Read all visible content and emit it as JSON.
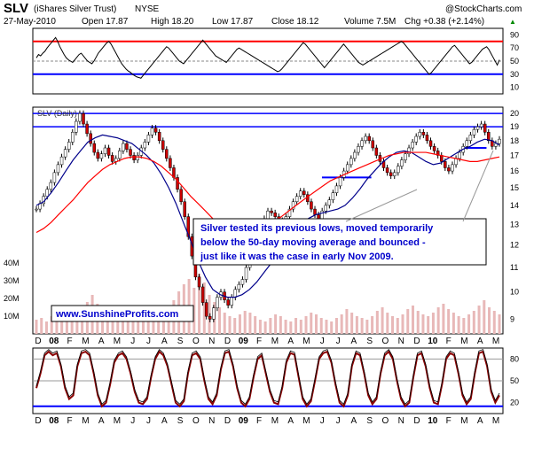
{
  "header": {
    "symbol": "SLV",
    "name": "(iShares Silver Trust)",
    "exchange": "NYSE",
    "date": "27-May-2010",
    "open": "Open 17.87",
    "high": "High 18.20",
    "low": "Low 17.87",
    "close": "Close 18.12",
    "volume": "Volume 7.5M",
    "change": "Chg +0.38 (+2.14%)",
    "change_arrow": "▲",
    "watermark": "@StockCharts.com"
  },
  "colors": {
    "price": "#000000",
    "up_candle": "#ffffff",
    "down_candle": "#cc0000",
    "ma_short": "#00008b",
    "ma_long": "#ff0000",
    "volume_bar": "#e8b8b8",
    "support_line": "#0000ff",
    "rsi_line": "#000000",
    "rsi_shade": "#333333",
    "stoch_line": "#000000",
    "stoch_red": "#8b0000",
    "band_red": "#ff0000",
    "band_blue": "#0000ff",
    "annotation_text": "#0000cc",
    "site_text": "#0000cc"
  },
  "annotation": {
    "text_lines": [
      "Silver tested its previous lows, moved temporarily",
      "below the 50-day moving average and bounced -",
      "just like it was the case in early Nov 2009."
    ]
  },
  "website": "www.SunshineProfits.com",
  "chart_data": [
    {
      "type": "line",
      "panel": "rsi",
      "title": "",
      "y_ticks": [
        10,
        30,
        50,
        70,
        90
      ],
      "ylim": [
        0,
        100
      ],
      "reference_lines": [
        {
          "value": 80,
          "color": "red"
        },
        {
          "value": 50,
          "color": "gray-dashed"
        },
        {
          "value": 30,
          "color": "blue"
        }
      ],
      "series": [
        {
          "values": [
            55,
            60,
            58,
            62,
            65,
            70,
            74,
            78,
            82,
            86,
            80,
            72,
            66,
            60,
            55,
            52,
            50,
            48,
            52,
            56,
            60,
            62,
            58,
            54,
            50,
            48,
            46,
            50,
            56,
            62,
            66,
            70,
            74,
            78,
            80,
            76,
            70,
            64,
            58,
            52,
            46,
            42,
            38,
            35,
            33,
            30,
            28,
            26,
            25,
            24,
            28,
            32,
            36,
            40,
            44,
            48,
            52,
            56,
            60,
            64,
            68,
            72,
            70,
            66,
            62,
            58,
            54,
            50,
            48,
            46,
            50,
            54,
            58,
            62,
            66,
            70,
            74,
            78,
            82,
            78,
            74,
            70,
            66,
            62,
            58,
            56,
            54,
            52,
            50,
            48,
            52,
            56,
            60,
            64,
            68,
            70,
            68,
            66,
            64,
            62,
            60,
            58,
            56,
            54,
            52,
            50,
            48,
            46,
            44,
            42,
            40,
            38,
            36,
            34,
            35,
            38,
            42,
            46,
            50,
            54,
            58,
            62,
            66,
            70,
            74,
            78,
            76,
            72,
            68,
            64,
            60,
            56,
            52,
            48,
            44,
            40,
            44,
            48,
            52,
            56,
            60,
            64,
            68,
            72,
            76,
            72,
            68,
            64,
            60,
            56,
            52,
            48,
            46,
            44,
            46,
            48,
            50,
            52,
            54,
            56,
            58,
            60,
            62,
            64,
            66,
            68,
            70,
            72,
            74,
            76,
            78,
            80,
            78,
            74,
            70,
            66,
            62,
            58,
            54,
            50,
            46,
            42,
            38,
            34,
            30,
            32,
            36,
            40,
            44,
            48,
            52,
            56,
            60,
            64,
            68,
            72,
            74,
            70,
            66,
            62,
            58,
            54,
            50,
            46,
            48,
            52,
            56,
            60,
            64,
            68,
            70,
            72,
            68,
            62,
            56,
            50,
            44,
            52
          ]
        }
      ]
    },
    {
      "type": "line",
      "panel": "price",
      "title": "SLV (Daily)",
      "y_ticks": [
        9,
        10,
        11,
        12,
        13,
        14,
        15,
        16,
        17,
        18,
        19,
        20
      ],
      "ylim": [
        8.5,
        20.5
      ],
      "log_scale": true,
      "x_tick_labels": [
        "D",
        "08",
        "F",
        "M",
        "A",
        "M",
        "J",
        "J",
        "A",
        "S",
        "O",
        "N",
        "D",
        "09",
        "F",
        "M",
        "A",
        "M",
        "J",
        "J",
        "A",
        "S",
        "O",
        "N",
        "D",
        "10",
        "F",
        "M",
        "A",
        "M"
      ],
      "reference_lines": [
        {
          "value": 20.0,
          "color": "blue"
        },
        {
          "value": 19.0,
          "color": "blue"
        }
      ],
      "support_segments": [
        {
          "x_range": [
            0.615,
            0.72
          ],
          "value": 15.6
        },
        {
          "x_range": [
            0.915,
            0.965
          ],
          "value": 17.5
        }
      ],
      "series": [
        {
          "name": "SLV",
          "values": [
            13.8,
            14.1,
            14.5,
            14.9,
            15.3,
            15.9,
            16.4,
            16.9,
            17.4,
            17.9,
            18.6,
            19.4,
            20.0,
            19.2,
            18.5,
            17.8,
            17.2,
            16.8,
            17.1,
            17.5,
            17.0,
            16.6,
            16.8,
            17.3,
            17.8,
            17.4,
            17.0,
            16.7,
            17.0,
            17.5,
            17.9,
            18.4,
            18.9,
            18.6,
            18.0,
            17.4,
            16.8,
            16.2,
            15.6,
            14.9,
            14.2,
            13.4,
            12.4,
            11.5,
            10.6,
            10.2,
            9.6,
            9.1,
            9.0,
            9.4,
            9.8,
            10.0,
            9.7,
            9.5,
            9.8,
            10.1,
            10.3,
            10.5,
            11.0,
            11.4,
            11.8,
            12.3,
            12.8,
            13.3,
            13.7,
            13.6,
            13.4,
            13.2,
            13.0,
            13.4,
            13.8,
            14.2,
            14.5,
            14.8,
            14.6,
            14.2,
            13.8,
            13.5,
            13.3,
            13.7,
            14.0,
            14.3,
            14.7,
            15.1,
            15.6,
            16.0,
            16.4,
            16.8,
            17.2,
            17.6,
            18.0,
            18.3,
            18.0,
            17.5,
            17.0,
            16.6,
            16.2,
            15.9,
            15.7,
            15.9,
            16.3,
            16.7,
            17.1,
            17.5,
            17.9,
            18.3,
            18.6,
            18.4,
            18.0,
            17.6,
            17.3,
            17.0,
            16.6,
            16.2,
            16.0,
            16.4,
            16.8,
            17.2,
            17.6,
            18.0,
            18.4,
            18.8,
            19.0,
            19.2,
            18.6,
            18.0,
            17.6,
            17.8,
            18.1
          ]
        },
        {
          "name": "50-day MA",
          "values": [
            14.0,
            14.2,
            14.7,
            15.3,
            16.0,
            16.7,
            17.3,
            17.9,
            18.2,
            18.4,
            18.3,
            18.2,
            18.0,
            17.8,
            17.4,
            17.0,
            16.5,
            15.8,
            15.0,
            14.1,
            13.1,
            12.2,
            11.3,
            10.6,
            10.1,
            9.9,
            9.8,
            9.8,
            9.9,
            10.1,
            10.4,
            10.8,
            11.2,
            11.6,
            12.0,
            12.5,
            13.0,
            13.3,
            13.5,
            13.6,
            13.7,
            13.8,
            14.0,
            14.4,
            14.9,
            15.5,
            16.0,
            16.5,
            16.9,
            17.2,
            17.3,
            17.2,
            16.9,
            16.6,
            16.4,
            16.5,
            16.8,
            17.1,
            17.4,
            17.6,
            17.9,
            18.1,
            18.0,
            17.7
          ]
        },
        {
          "name": "200-day MA",
          "values": [
            12.6,
            12.8,
            13.1,
            13.5,
            13.9,
            14.3,
            14.8,
            15.3,
            15.7,
            16.1,
            16.4,
            16.6,
            16.8,
            16.9,
            16.9,
            16.8,
            16.6,
            16.3,
            15.9,
            15.5,
            15.0,
            14.5,
            14.1,
            13.7,
            13.3,
            13.0,
            12.8,
            12.6,
            12.5,
            12.5,
            12.6,
            12.8,
            13.0,
            13.3,
            13.6,
            13.9,
            14.2,
            14.5,
            14.8,
            15.1,
            15.4,
            15.6,
            15.8,
            16.0,
            16.2,
            16.4,
            16.6,
            16.8,
            17.0,
            17.1,
            17.2,
            17.2,
            17.2,
            17.2,
            17.1,
            17.0,
            16.9,
            16.8,
            16.7,
            16.6,
            16.6,
            16.7,
            16.8,
            16.9
          ]
        }
      ]
    },
    {
      "type": "bar",
      "panel": "volume",
      "title": "",
      "y_ticks": [
        "40M",
        "30M",
        "20M",
        "10M"
      ],
      "ylim": [
        0,
        45
      ],
      "series": [
        {
          "name": "Volume",
          "values": [
            8,
            9,
            7,
            10,
            12,
            15,
            11,
            9,
            8,
            14,
            18,
            22,
            17,
            13,
            10,
            9,
            8,
            11,
            13,
            15,
            12,
            10,
            9,
            8,
            7,
            12,
            16,
            19,
            24,
            28,
            31,
            26,
            34,
            29,
            22,
            18,
            15,
            12,
            10,
            9,
            11,
            13,
            12,
            10,
            8,
            7,
            9,
            11,
            10,
            8,
            7,
            9,
            8,
            10,
            12,
            11,
            9,
            8,
            7,
            9,
            11,
            14,
            12,
            10,
            9,
            8,
            10,
            13,
            15,
            12,
            10,
            9,
            11,
            14,
            16,
            13,
            11,
            10,
            12,
            15,
            17,
            14,
            12,
            10,
            9,
            11,
            13,
            16,
            19,
            15,
            13,
            11
          ]
        }
      ]
    },
    {
      "type": "line",
      "panel": "stochastic",
      "title": "",
      "y_ticks": [
        20,
        50,
        80
      ],
      "ylim": [
        5,
        95
      ],
      "x_tick_labels": [
        "D",
        "08",
        "F",
        "M",
        "A",
        "M",
        "J",
        "J",
        "A",
        "S",
        "O",
        "N",
        "D",
        "09",
        "F",
        "M",
        "A",
        "M",
        "J",
        "J",
        "A",
        "S",
        "O",
        "N",
        "D",
        "10",
        "F",
        "M",
        "A",
        "M"
      ],
      "reference_lines": [
        {
          "value": 80,
          "color": "gray"
        },
        {
          "value": 50,
          "color": "gray"
        },
        {
          "value": 15,
          "color": "blue"
        }
      ],
      "series": [
        {
          "values": [
            40,
            60,
            85,
            90,
            85,
            88,
            70,
            40,
            25,
            30,
            70,
            88,
            90,
            85,
            60,
            30,
            15,
            20,
            45,
            75,
            85,
            88,
            80,
            60,
            35,
            20,
            18,
            25,
            55,
            80,
            90,
            85,
            70,
            45,
            20,
            15,
            22,
            60,
            85,
            88,
            80,
            50,
            25,
            18,
            30,
            65,
            88,
            90,
            70,
            40,
            20,
            15,
            25,
            55,
            80,
            85,
            60,
            35,
            20,
            18,
            40,
            75,
            88,
            86,
            55,
            25,
            15,
            22,
            50,
            80,
            88,
            90,
            75,
            45,
            20,
            15,
            30,
            70,
            88,
            85,
            60,
            30,
            18,
            25,
            60,
            85,
            90,
            80,
            50,
            25,
            15,
            20,
            55,
            85,
            88,
            70,
            40,
            20,
            18,
            45,
            80,
            88,
            85,
            60,
            30,
            18,
            25,
            60,
            88,
            90,
            70,
            35,
            20,
            30
          ]
        }
      ]
    }
  ]
}
